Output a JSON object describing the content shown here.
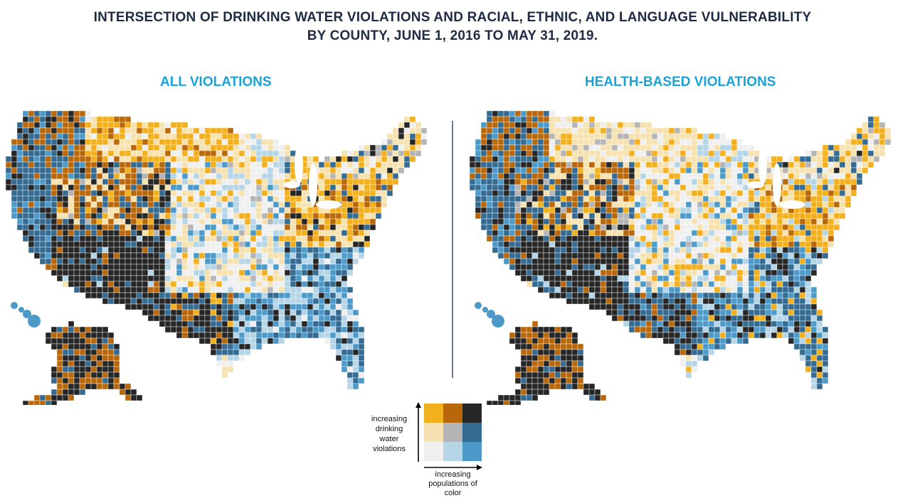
{
  "title": {
    "line1": "INTERSECTION OF DRINKING WATER VIOLATIONS AND RACIAL, ETHNIC, AND LANGUAGE VULNERABILITY",
    "line2": "BY COUNTY, JUNE 1, 2016 TO MAY 31, 2019."
  },
  "panels": {
    "left": {
      "title": "ALL VIOLATIONS"
    },
    "right": {
      "title": "HEALTH-BASED VIOLATIONS"
    }
  },
  "legend": {
    "y_label": "increasing drinking water violations",
    "x_label": "increasing populations of color",
    "grid_colors": [
      [
        "#f2b01e",
        "#b8680b",
        "#262626"
      ],
      [
        "#f5e2b0",
        "#b5b5b5",
        "#356a91"
      ],
      [
        "#efefef",
        "#b6d5e6",
        "#4d9ac8"
      ]
    ]
  },
  "colors": {
    "title": "#1f2a44",
    "panel_title": "#1aa3d6",
    "divider": "#6b7a8f",
    "map_stroke": "#ffffff"
  }
}
